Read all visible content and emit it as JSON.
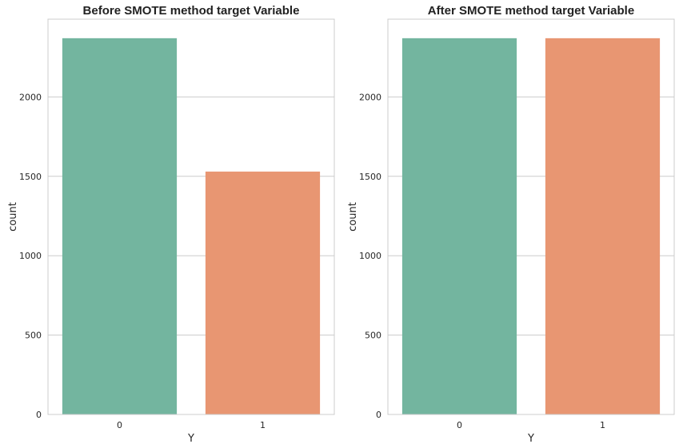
{
  "chart_data": [
    {
      "type": "bar",
      "title": "Before SMOTE method target Variable",
      "xlabel": "Y",
      "ylabel": "count",
      "categories": [
        "0",
        "1"
      ],
      "values": [
        2370,
        1530
      ],
      "colors": [
        "#73b59f",
        "#e89672"
      ],
      "yticks": [
        0,
        500,
        1000,
        1500,
        2000
      ],
      "ylim": [
        0,
        2490
      ],
      "grid": true
    },
    {
      "type": "bar",
      "title": "After SMOTE method target Variable",
      "xlabel": "Y",
      "ylabel": "count",
      "categories": [
        "0",
        "1"
      ],
      "values": [
        2370,
        2370
      ],
      "colors": [
        "#73b59f",
        "#e89672"
      ],
      "yticks": [
        0,
        500,
        1000,
        1500,
        2000
      ],
      "ylim": [
        0,
        2490
      ],
      "grid": true
    }
  ]
}
